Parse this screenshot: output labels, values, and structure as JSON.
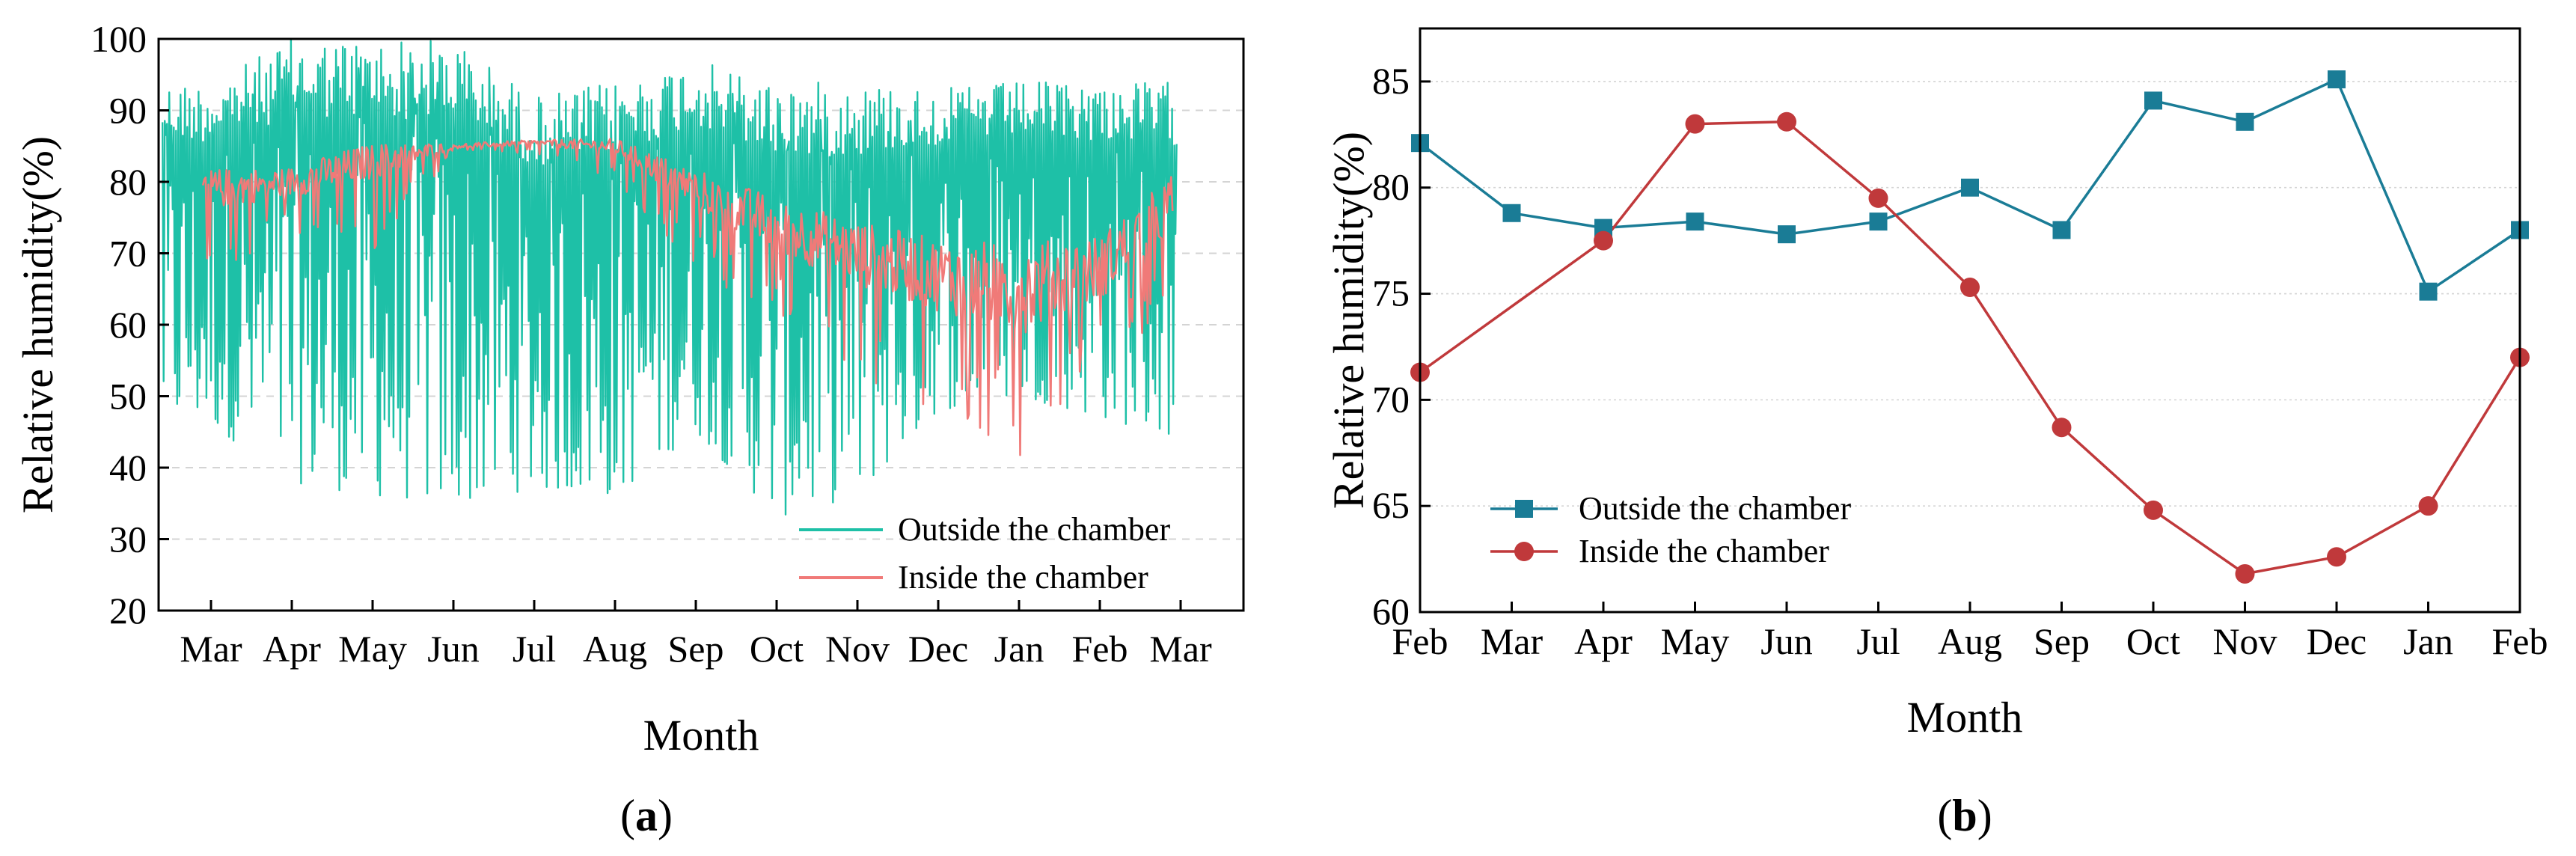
{
  "figure": {
    "panel_a_label": {
      "open": "(",
      "letter": "a",
      "close": ")"
    },
    "panel_b_label": {
      "open": "(",
      "letter": "b",
      "close": ")"
    }
  },
  "colors": {
    "outside_a": "#1ec0a7",
    "inside_a": "#f07a78",
    "outside_b": "#1a7c96",
    "inside_b": "#c0393b",
    "grid": "#d4d4d4",
    "axis": "#000000"
  },
  "chart_data": [
    {
      "id": "a",
      "type": "line",
      "title": "",
      "xlabel": "Month",
      "ylabel": "Relative humidity(%)",
      "ylim": [
        20,
        100
      ],
      "yticks": [
        20,
        30,
        40,
        50,
        60,
        70,
        80,
        90,
        100
      ],
      "categories": [
        "Mar",
        "Apr",
        "May",
        "Jun",
        "Jul",
        "Aug",
        "Sep",
        "Oct",
        "Nov",
        "Dec",
        "Jan",
        "Feb",
        "Mar"
      ],
      "grid": "horizontal dashed",
      "legend_position": "bottom-right",
      "series": [
        {
          "name": "Outside the chamber",
          "month_envelopes": [
            {
              "month": "Mar",
              "low": 46,
              "high": 94
            },
            {
              "month": "Apr",
              "low": 38,
              "high": 100
            },
            {
              "month": "May",
              "low": 36,
              "high": 100
            },
            {
              "month": "Jun",
              "low": 35,
              "high": 100
            },
            {
              "month": "Jul",
              "low": 37,
              "high": 92
            },
            {
              "month": "Aug",
              "low": 36,
              "high": 94
            },
            {
              "month": "Sep",
              "low": 45,
              "high": 97
            },
            {
              "month": "Oct",
              "low": 33,
              "high": 94
            },
            {
              "month": "Nov",
              "low": 36,
              "high": 94
            },
            {
              "month": "Dec",
              "low": 48,
              "high": 93
            },
            {
              "month": "Jan",
              "low": 50,
              "high": 94
            },
            {
              "month": "Feb",
              "low": 47,
              "high": 94
            },
            {
              "month": "Mar",
              "low": 44,
              "high": 94
            }
          ]
        },
        {
          "name": "Inside the chamber",
          "monthly_level": [
            {
              "month": "Mar",
              "level": 79,
              "low": 66,
              "high": 82
            },
            {
              "month": "Apr",
              "level": 80,
              "low": 72,
              "high": 84
            },
            {
              "month": "May",
              "level": 83,
              "low": 70,
              "high": 85
            },
            {
              "month": "Jun",
              "level": 85,
              "low": 84,
              "high": 86
            },
            {
              "month": "Jul",
              "level": 85.5,
              "low": 84,
              "high": 86
            },
            {
              "month": "Aug",
              "level": 85,
              "low": 80,
              "high": 86
            },
            {
              "month": "Sep",
              "level": 79,
              "low": 67,
              "high": 83
            },
            {
              "month": "Oct",
              "level": 74,
              "low": 60,
              "high": 82
            },
            {
              "month": "Nov",
              "level": 70,
              "low": 53,
              "high": 79
            },
            {
              "month": "Dec",
              "level": 67,
              "low": 47,
              "high": 76
            },
            {
              "month": "Jan",
              "level": 65,
              "low": 41,
              "high": 78
            },
            {
              "month": "Feb",
              "level": 68,
              "low": 55,
              "high": 81
            },
            {
              "month": "Mar",
              "level": 78,
              "low": 60,
              "high": 84
            }
          ]
        }
      ]
    },
    {
      "id": "b",
      "type": "line",
      "title": "",
      "xlabel": "Month",
      "ylabel": "Relative humidity(%)",
      "ylim": [
        60,
        87.5
      ],
      "yticks": [
        60,
        65,
        70,
        75,
        80,
        85
      ],
      "categories": [
        "Feb",
        "Mar",
        "Apr",
        "May",
        "Jun",
        "Jul",
        "Aug",
        "Sep",
        "Oct",
        "Nov",
        "Dec",
        "Jan",
        "Feb"
      ],
      "grid": "horizontal dotted",
      "legend_position": "bottom-left",
      "series": [
        {
          "name": "Outside the chamber",
          "marker": "square",
          "points": [
            {
              "month": "Feb",
              "value": 82.1
            },
            {
              "month": "Mar",
              "value": 78.8
            },
            {
              "month": "Apr",
              "value": 78.1
            },
            {
              "month": "May",
              "value": 78.4
            },
            {
              "month": "Jun",
              "value": 77.8
            },
            {
              "month": "Jul",
              "value": 78.4
            },
            {
              "month": "Aug",
              "value": 80.0
            },
            {
              "month": "Sep",
              "value": 78.0
            },
            {
              "month": "Oct",
              "value": 84.1
            },
            {
              "month": "Nov",
              "value": 83.1
            },
            {
              "month": "Dec",
              "value": 85.1
            },
            {
              "month": "Jan",
              "value": 75.1
            },
            {
              "month": "Feb",
              "value": 78.0
            }
          ]
        },
        {
          "name": "Inside the chamber",
          "marker": "circle",
          "points": [
            {
              "month": "Feb",
              "value": 71.3
            },
            {
              "month": "Apr",
              "value": 77.5
            },
            {
              "month": "May",
              "value": 83.0
            },
            {
              "month": "Jun",
              "value": 83.1
            },
            {
              "month": "Jul",
              "value": 79.5
            },
            {
              "month": "Aug",
              "value": 75.3
            },
            {
              "month": "Sep",
              "value": 68.7
            },
            {
              "month": "Oct",
              "value": 64.8
            },
            {
              "month": "Nov",
              "value": 61.8
            },
            {
              "month": "Dec",
              "value": 62.6
            },
            {
              "month": "Jan",
              "value": 65.0
            },
            {
              "month": "Feb",
              "value": 72.0
            }
          ]
        }
      ]
    }
  ]
}
